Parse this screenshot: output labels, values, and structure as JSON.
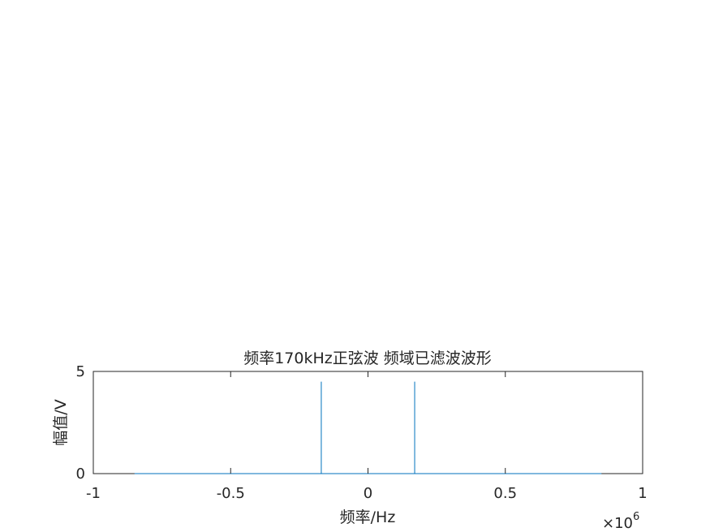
{
  "chart_data": {
    "type": "line",
    "title": "频率170kHz正弦波 频域已滤波波形",
    "xlabel": "频率/Hz",
    "ylabel": "幅值/V",
    "xlim": [
      -1000000,
      1000000
    ],
    "ylim": [
      0,
      5
    ],
    "x_ticks": [
      -1000000,
      -500000,
      0,
      500000,
      1000000
    ],
    "x_tick_labels": [
      "-1",
      "-0.5",
      "0",
      "0.5",
      "1"
    ],
    "y_ticks": [
      0,
      5
    ],
    "y_tick_labels": [
      "0",
      "5"
    ],
    "x_exponent_label": {
      "base": "×10",
      "power": "6"
    },
    "grid": false,
    "series_color": "#0072bd",
    "series": [
      {
        "x": [
          -850000,
          -170000,
          -170000,
          -170000,
          170000,
          170000,
          170000,
          850000
        ],
        "y": [
          0,
          0,
          4.5,
          0,
          0,
          4.5,
          0,
          0
        ]
      }
    ]
  }
}
